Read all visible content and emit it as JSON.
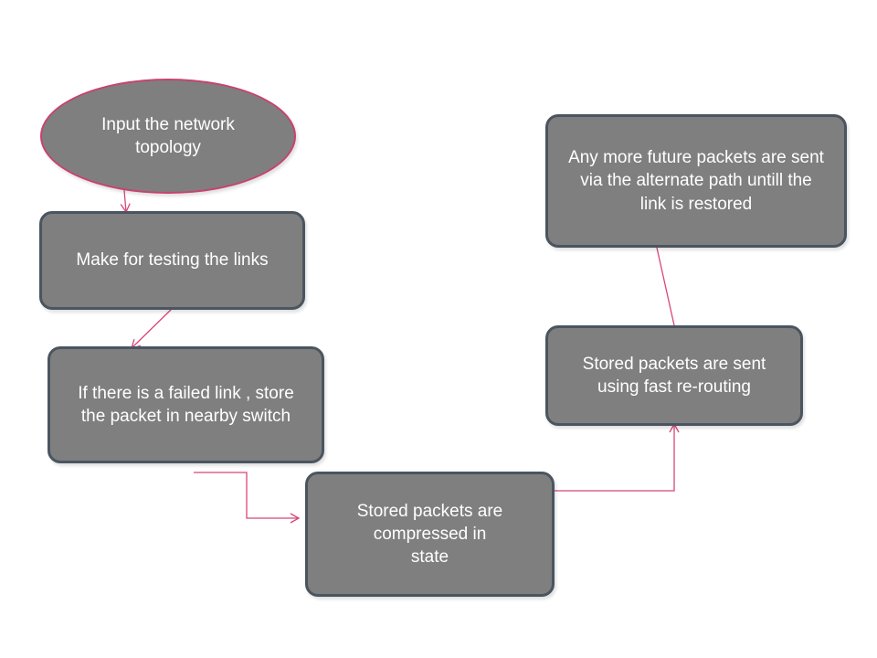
{
  "diagram": {
    "accent_color": "#d8457a",
    "node_fill": "#7f7f7f",
    "node_border": "#4a5560",
    "nodes": {
      "input_topology": {
        "label": "Input  the network topology"
      },
      "testing_links": {
        "label": "Make for testing the links"
      },
      "failed_link": {
        "label": "If there is a failed link , store the packet in nearby switch"
      },
      "compressed": {
        "label": "Stored packets are compressed in state"
      },
      "fast_reroute": {
        "label": "Stored packets are sent using fast re-routing"
      },
      "future_packets": {
        "label": "Any more future packets are sent via the alternate path untill the link is restored"
      }
    },
    "edges": [
      {
        "from": "input_topology",
        "to": "testing_links"
      },
      {
        "from": "testing_links",
        "to": "failed_link"
      },
      {
        "from": "failed_link",
        "to": "compressed"
      },
      {
        "from": "compressed",
        "to": "fast_reroute"
      },
      {
        "from": "fast_reroute",
        "to": "future_packets"
      }
    ]
  }
}
